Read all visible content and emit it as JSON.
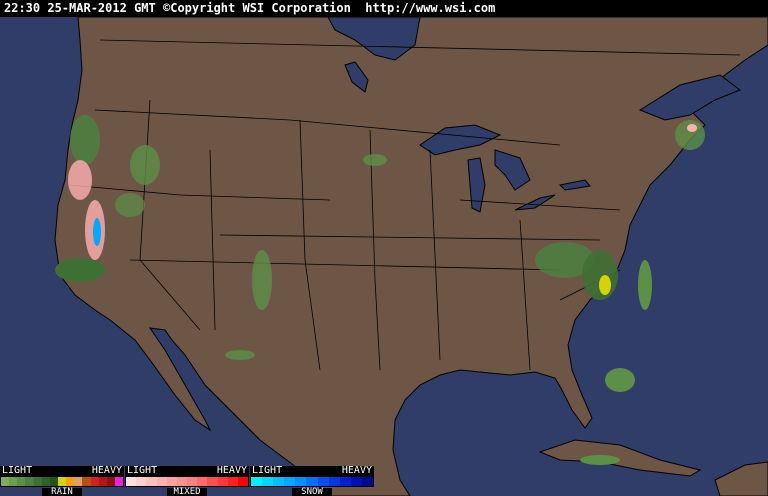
{
  "header": {
    "time": "22:30",
    "date": "25-MAR-2012",
    "zone": "GMT",
    "copyright": "©Copyright WSI Corporation",
    "url": "http://www.wsi.com"
  },
  "colors": {
    "ocean": "#2f3d68",
    "land": "#6e5646",
    "border": "#000000"
  },
  "legend": [
    {
      "name": "RAIN",
      "light": "LIGHT",
      "heavy": "HEAVY",
      "colors": [
        "#7caf5c",
        "#6a9f4f",
        "#5b9046",
        "#4c8040",
        "#3f7033",
        "#2f6128",
        "#24521e",
        "#d4d400",
        "#f4a010",
        "#e0a060",
        "#b85010",
        "#d02020",
        "#b01818",
        "#901010",
        "#f020e0"
      ]
    },
    {
      "name": "MIXED",
      "light": "LIGHT",
      "heavy": "HEAVY",
      "colors": [
        "#ffe0e0",
        "#ffd0d0",
        "#ffc0c0",
        "#ffb0b0",
        "#ffa0a0",
        "#ff9090",
        "#ff8080",
        "#ff6a6a",
        "#ff5050",
        "#ff3a3a",
        "#ff2020",
        "#ff0000"
      ]
    },
    {
      "name": "SNOW",
      "light": "LIGHT",
      "heavy": "HEAVY",
      "colors": [
        "#00f0ff",
        "#00d8ff",
        "#00c0ff",
        "#00a8ff",
        "#0090ff",
        "#0070ff",
        "#0050f0",
        "#0038e0",
        "#0020d0",
        "#0010b0",
        "#000890"
      ]
    }
  ]
}
